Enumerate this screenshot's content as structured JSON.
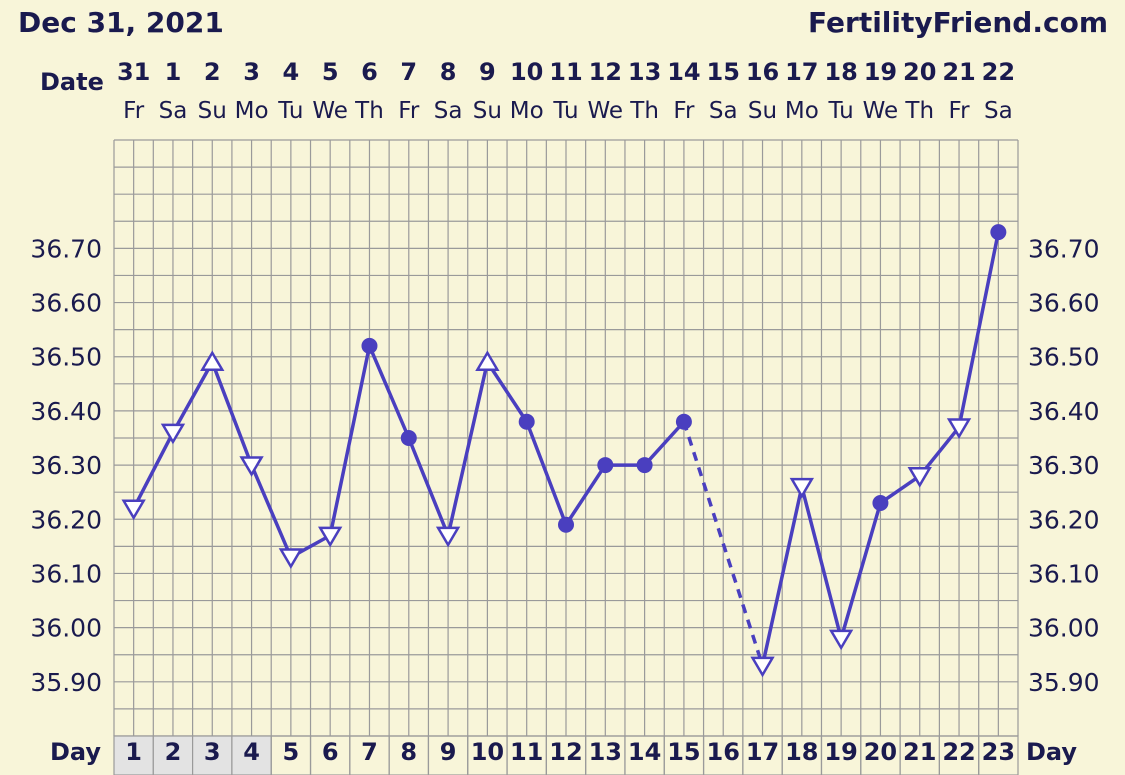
{
  "header": {
    "date": "Dec 31, 2021",
    "site": "FertilityFriend.com"
  },
  "labels": {
    "date_row": "Date",
    "day_row": "Day"
  },
  "colors": {
    "background": "#f8f5d9",
    "grid": "#9a9a9a",
    "series": "#4a3fbf",
    "text": "#1a1a4e",
    "day_cell": "#e3e3e3"
  },
  "chart_data": {
    "type": "line",
    "ylim": [
      35.8,
      36.9
    ],
    "yticks": [
      "36.70",
      "36.60",
      "36.50",
      "36.40",
      "36.30",
      "36.20",
      "36.10",
      "36.00",
      "35.90"
    ],
    "ytick_values": [
      36.7,
      36.6,
      36.5,
      36.4,
      36.3,
      36.2,
      36.1,
      36.0,
      35.9
    ],
    "dates": [
      "31",
      "1",
      "2",
      "3",
      "4",
      "5",
      "6",
      "7",
      "8",
      "9",
      "10",
      "11",
      "12",
      "13",
      "14",
      "15",
      "16",
      "17",
      "18",
      "19",
      "20",
      "21",
      "22"
    ],
    "weekdays": [
      "Fr",
      "Sa",
      "Su",
      "Mo",
      "Tu",
      "We",
      "Th",
      "Fr",
      "Sa",
      "Su",
      "Mo",
      "Tu",
      "We",
      "Th",
      "Fr",
      "Sa",
      "Su",
      "Mo",
      "Tu",
      "We",
      "Th",
      "Fr",
      "Sa"
    ],
    "cycle_days": [
      "1",
      "2",
      "3",
      "4",
      "5",
      "6",
      "7",
      "8",
      "9",
      "10",
      "11",
      "12",
      "13",
      "14",
      "15",
      "16",
      "17",
      "18",
      "19",
      "20",
      "21",
      "22",
      "23"
    ],
    "series": [
      {
        "values": [
          36.22,
          36.36,
          36.49,
          36.3,
          36.13,
          36.17,
          36.52,
          36.35,
          36.17,
          36.49,
          36.38,
          36.19,
          36.3,
          36.3,
          36.38,
          null,
          35.93,
          36.26,
          35.98,
          36.23,
          36.28,
          36.37,
          36.73
        ],
        "markers": [
          "down",
          "down",
          "up",
          "down",
          "down",
          "down",
          "dot",
          "dot",
          "down",
          "up",
          "dot",
          "dot",
          "dot",
          "dot",
          "dot",
          null,
          "down",
          "down",
          "down",
          "dot",
          "down",
          "down",
          "dot"
        ]
      }
    ],
    "dashed_segments": [
      [
        14,
        16
      ]
    ]
  }
}
